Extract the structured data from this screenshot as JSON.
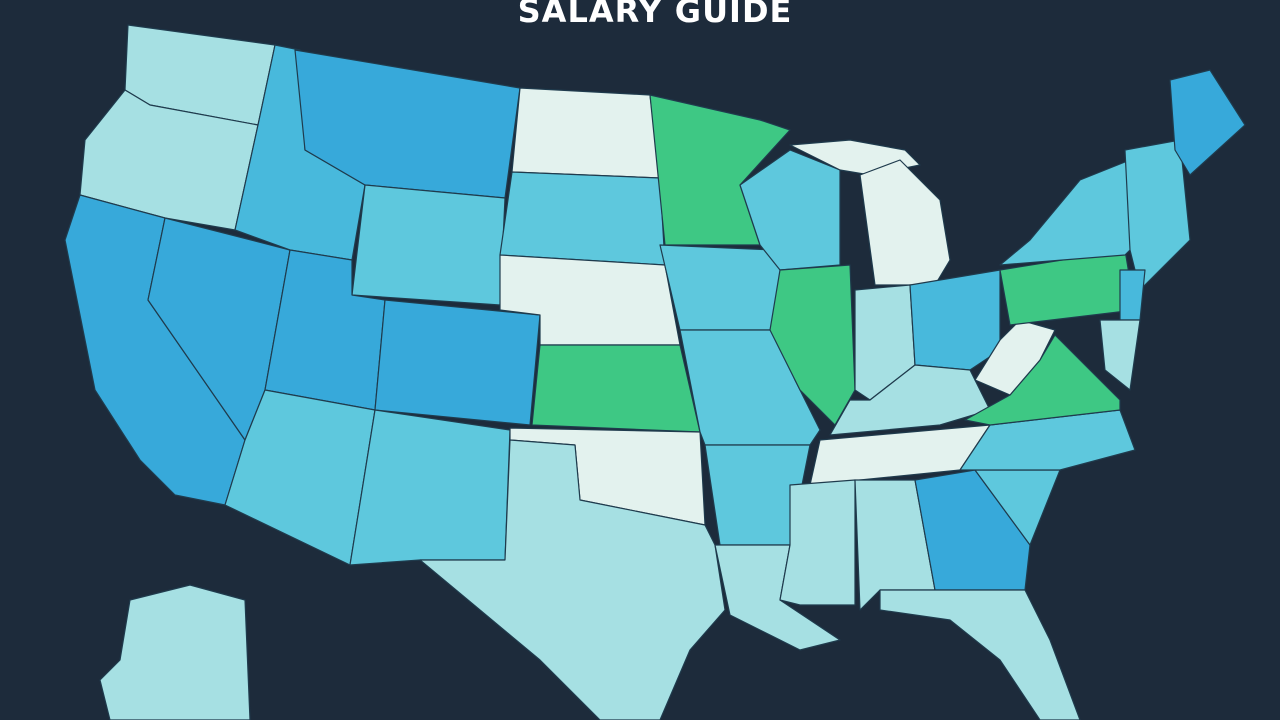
{
  "title": "SALARY GUIDE"
}
